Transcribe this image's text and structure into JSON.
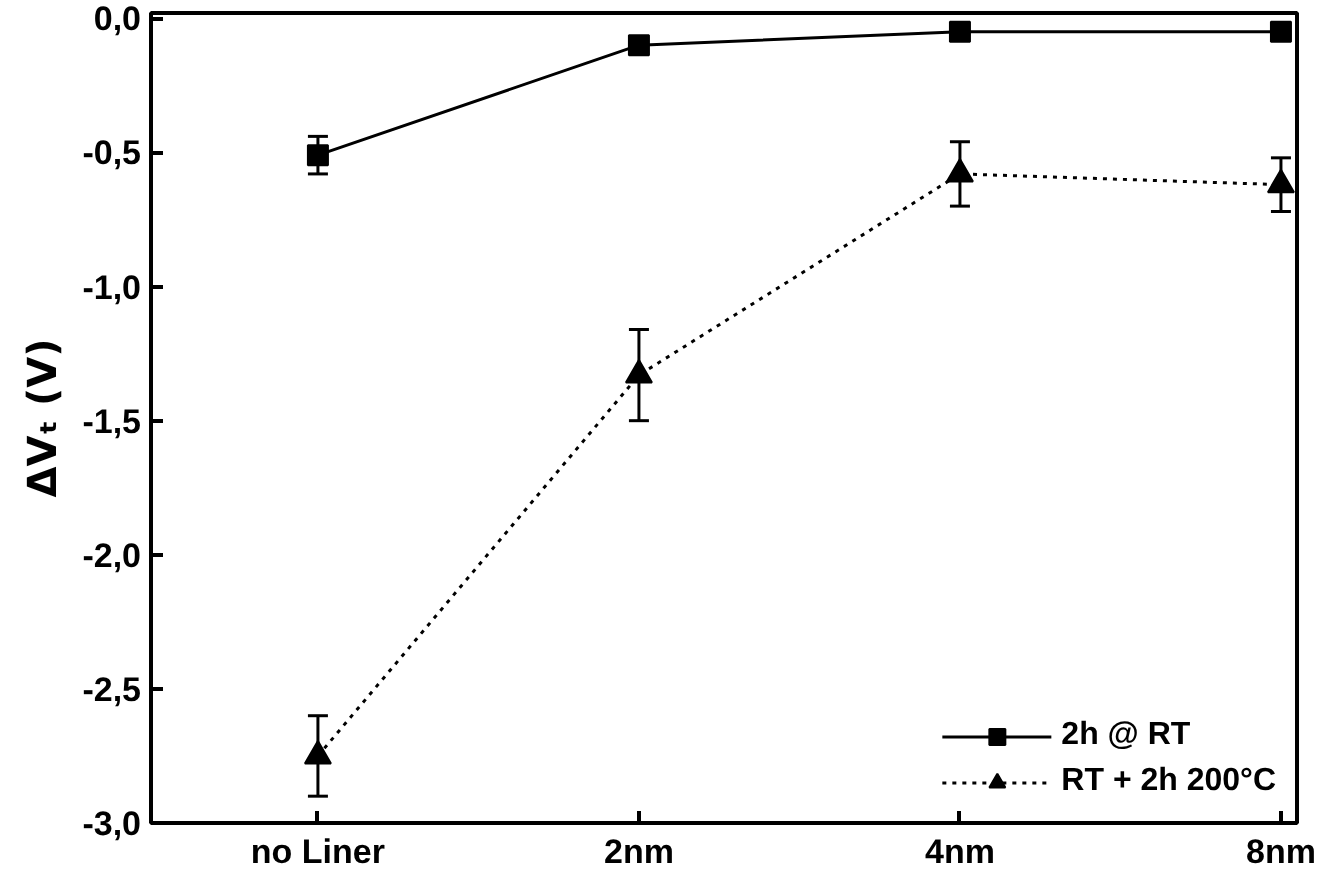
{
  "chart_data": {
    "type": "line",
    "ylabel": "ΔVₜ (V)",
    "categories": [
      "no Liner",
      "2nm",
      "4nm",
      "8nm"
    ],
    "series": [
      {
        "name": "2h @ RT",
        "color": "#000000",
        "values": [
          -0.51,
          -0.1,
          -0.05,
          -0.05
        ],
        "errors": [
          0.07,
          0.02,
          0.02,
          0.02
        ],
        "marker": "square",
        "line_style": "solid"
      },
      {
        "name": "RT + 2h 200°C",
        "color": "#000000",
        "values": [
          -2.75,
          -1.33,
          -0.58,
          -0.62
        ],
        "errors": [
          0.15,
          0.17,
          0.12,
          0.1
        ],
        "marker": "triangle",
        "line_style": "dotted"
      }
    ],
    "ylim": [
      -3.0,
      0.02
    ],
    "yticks": [
      {
        "value": 0,
        "label": "0,0"
      },
      {
        "value": -0.5,
        "label": "-0,5"
      },
      {
        "value": -1.0,
        "label": "-1,0"
      },
      {
        "value": -1.5,
        "label": "-1,5"
      },
      {
        "value": -2.0,
        "label": "-2,0"
      },
      {
        "value": -2.5,
        "label": "-2,5"
      },
      {
        "value": -3.0,
        "label": "-3,0"
      }
    ],
    "grid": false,
    "legend": "bottom right"
  }
}
